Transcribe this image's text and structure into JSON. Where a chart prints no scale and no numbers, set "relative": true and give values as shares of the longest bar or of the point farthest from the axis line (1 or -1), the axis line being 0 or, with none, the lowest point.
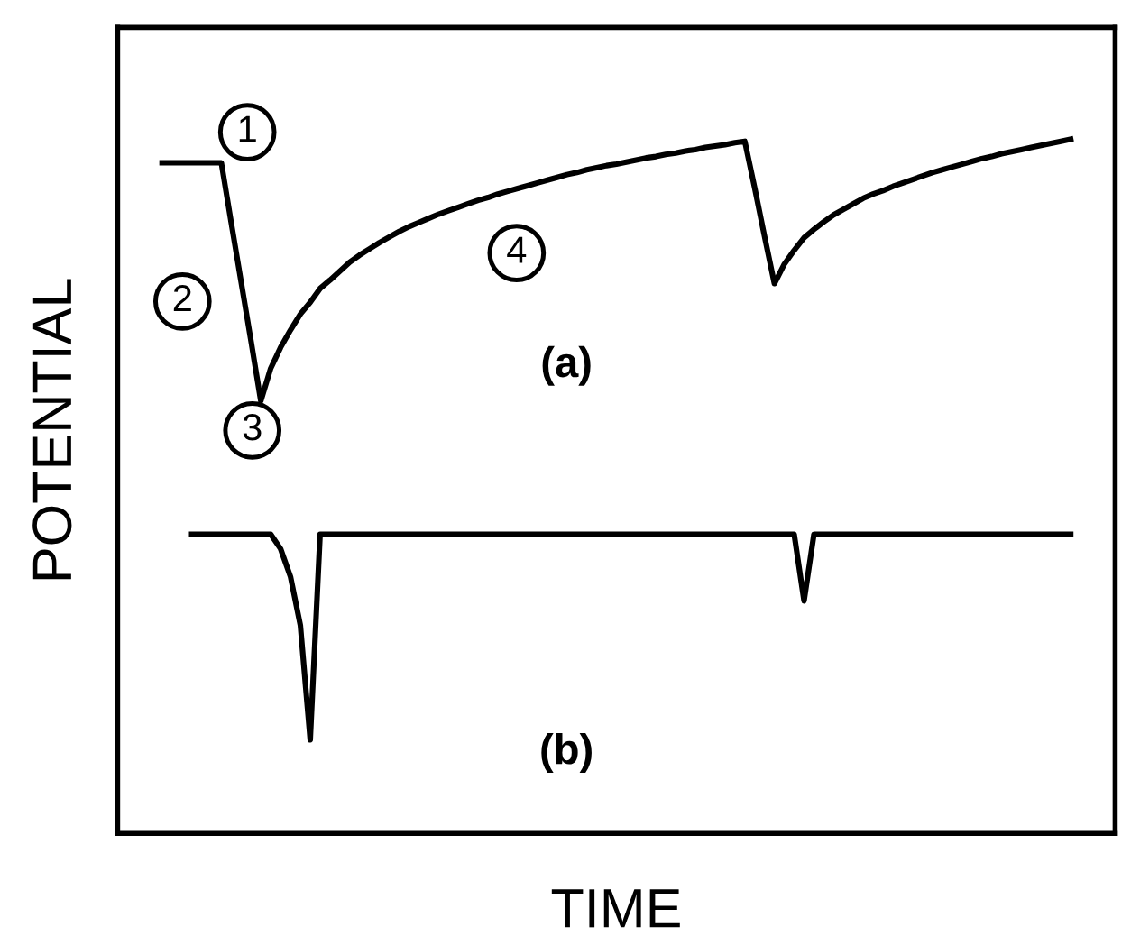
{
  "chart_data": {
    "type": "line",
    "relative": true,
    "xlabel": "TIME",
    "ylabel": "POTENTIAL",
    "marker": "none",
    "line_style": "solid",
    "categories": [
      null,
      null,
      null,
      null,
      null,
      null,
      null,
      null,
      null,
      null,
      null,
      null,
      null,
      null,
      null,
      null,
      null,
      null,
      null,
      null,
      null,
      null,
      null,
      null,
      null,
      null,
      null,
      null,
      null,
      null,
      null,
      null,
      null,
      null,
      null,
      null,
      null,
      null,
      null,
      null,
      null,
      null,
      null,
      null,
      null,
      null,
      null,
      null,
      null,
      null,
      null,
      null,
      null,
      null,
      null,
      null,
      null,
      null,
      null,
      null,
      null,
      null,
      null,
      null,
      null,
      null,
      null,
      null,
      null,
      null,
      null,
      null,
      null,
      null,
      null,
      null,
      null,
      null,
      null,
      null,
      null,
      null,
      null,
      null,
      null,
      null,
      null,
      null,
      null,
      null,
      null,
      null,
      null,
      null,
      null,
      null,
      null,
      null,
      null,
      null,
      null
    ],
    "series": [
      {
        "color": "#000000",
        "values": [
          null,
          null,
          null,
          null,
          0.966,
          0.966,
          0.966,
          0.966,
          0.966,
          0.966,
          0.966,
          0.88,
          0.795,
          0.71,
          0.623,
          0.67,
          0.7,
          0.725,
          0.748,
          0.765,
          0.785,
          0.797,
          0.81,
          0.823,
          0.833,
          0.842,
          0.851,
          0.859,
          0.867,
          0.874,
          0.88,
          0.886,
          0.892,
          0.897,
          0.902,
          0.907,
          0.912,
          0.916,
          0.921,
          0.925,
          0.929,
          0.933,
          0.937,
          0.941,
          0.945,
          0.949,
          0.952,
          0.956,
          0.959,
          0.962,
          0.964,
          0.967,
          0.97,
          0.973,
          0.975,
          0.978,
          0.98,
          0.983,
          0.985,
          0.988,
          0.99,
          0.992,
          0.995,
          0.997,
          0.93,
          0.86,
          0.792,
          0.82,
          0.84,
          0.858,
          0.87,
          0.881,
          0.891,
          0.899,
          0.907,
          0.915,
          0.921,
          0.926,
          0.932,
          0.937,
          0.942,
          0.947,
          0.952,
          0.956,
          0.96,
          0.964,
          0.968,
          0.972,
          0.975,
          0.979,
          0.982,
          0.985,
          0.988,
          0.991,
          0.994,
          0.997,
          1.0,
          null,
          null,
          null,
          null
        ]
      },
      {
        "color": "#000000",
        "values": [
          null,
          null,
          null,
          null,
          null,
          null,
          null,
          0.431,
          0.431,
          0.431,
          0.431,
          0.431,
          0.431,
          0.431,
          0.431,
          0.431,
          0.41,
          0.37,
          0.3,
          0.135,
          0.431,
          0.431,
          0.431,
          0.431,
          0.431,
          0.431,
          0.431,
          0.431,
          0.431,
          0.431,
          0.431,
          0.431,
          0.431,
          0.431,
          0.431,
          0.431,
          0.431,
          0.431,
          0.431,
          0.431,
          0.431,
          0.431,
          0.431,
          0.431,
          0.431,
          0.431,
          0.431,
          0.431,
          0.431,
          0.431,
          0.431,
          0.431,
          0.431,
          0.431,
          0.431,
          0.431,
          0.431,
          0.431,
          0.431,
          0.431,
          0.431,
          0.431,
          0.431,
          0.431,
          0.431,
          0.431,
          0.431,
          0.431,
          0.431,
          0.335,
          0.431,
          0.431,
          0.431,
          0.431,
          0.431,
          0.431,
          0.431,
          0.431,
          0.431,
          0.431,
          0.431,
          0.431,
          0.431,
          0.431,
          0.431,
          0.431,
          0.431,
          0.431,
          0.431,
          0.431,
          0.431,
          0.431,
          0.431,
          0.431,
          0.431,
          0.431,
          0.431,
          null,
          null,
          null,
          null
        ]
      }
    ],
    "annotations": [
      "1",
      "2",
      "3",
      "4",
      "(a)",
      "(b)"
    ]
  }
}
